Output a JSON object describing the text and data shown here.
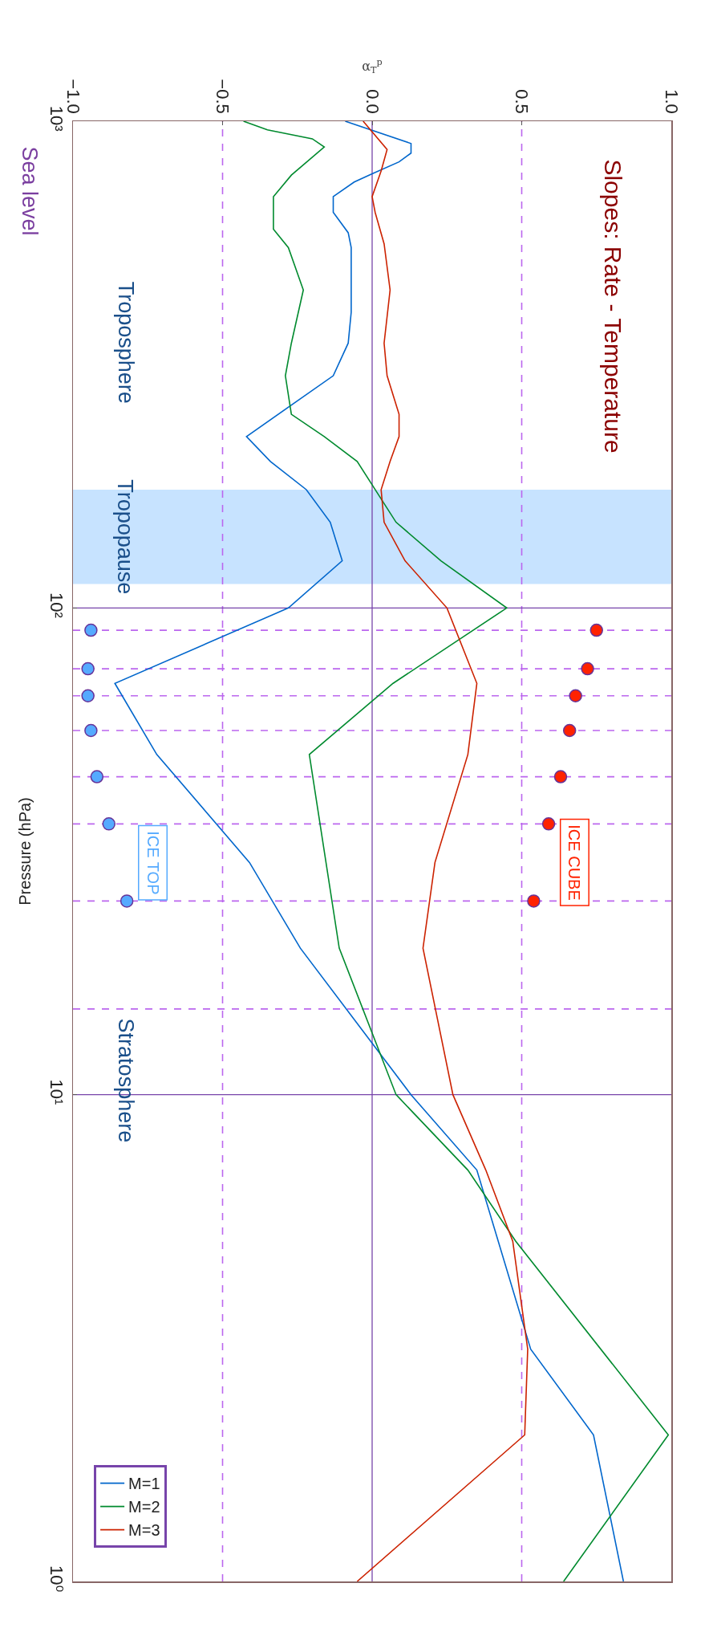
{
  "chart_data": {
    "type": "line",
    "title": "Slopes: Rate - Temperature",
    "xlabel": "α$_{T}$$^{p}$",
    "ylabel": "Pressure (hPa)",
    "log": "y",
    "grid": false,
    "legend": "bottom left",
    "ylim": [
      1,
      1000
    ],
    "yticks": [
      {
        "value": 1000,
        "label": "10³"
      },
      {
        "value": 100,
        "label": "10²"
      },
      {
        "value": 10,
        "label": "10¹"
      },
      {
        "value": 1,
        "label": "10⁰"
      }
    ],
    "xlim": [
      -1,
      1
    ],
    "xticks": [
      {
        "value": -1,
        "label": "−1.0"
      },
      {
        "value": -0.5,
        "label": "−0.5"
      },
      {
        "value": 0,
        "label": "0.0"
      },
      {
        "value": 0.5,
        "label": "0.5"
      },
      {
        "value": 1,
        "label": "1.0"
      }
    ],
    "series": [
      {
        "name": "M=1",
        "color": "#0066cc",
        "values": [
          1000,
          900,
          860,
          825,
          780,
          750,
          700,
          650,
          590,
          550,
          405,
          350,
          300,
          225,
          200,
          175,
          150,
          125,
          100,
          70,
          50,
          30,
          20,
          10,
          7,
          3,
          2,
          1
        ],
        "x": [
          -0.09,
          0.13,
          0.13,
          0.09,
          0.0,
          -0.06,
          -0.13,
          -0.13,
          -0.08,
          -0.07,
          -0.07,
          -0.08,
          -0.13,
          -0.42,
          -0.34,
          -0.22,
          -0.14,
          -0.1,
          -0.28,
          -0.86,
          -0.72,
          -0.41,
          -0.24,
          0.13,
          0.35,
          0.53,
          0.74,
          0.84
        ]
      },
      {
        "name": "M=2",
        "color": "#008a2e",
        "values": [
          1000,
          960,
          920,
          885,
          775,
          700,
          650,
          600,
          550,
          450,
          350,
          300,
          250,
          225,
          200,
          150,
          125,
          100,
          70,
          50,
          20,
          10,
          7,
          5,
          2,
          1
        ],
        "x": [
          -0.43,
          -0.35,
          -0.2,
          -0.16,
          -0.27,
          -0.33,
          -0.33,
          -0.33,
          -0.28,
          -0.23,
          -0.27,
          -0.29,
          -0.27,
          -0.16,
          -0.05,
          0.08,
          0.23,
          0.45,
          0.07,
          -0.21,
          -0.11,
          0.08,
          0.32,
          0.48,
          0.99,
          0.64
        ]
      },
      {
        "name": "M=3",
        "color": "#cc2200",
        "values": [
          1000,
          875,
          790,
          700,
          650,
          560,
          450,
          350,
          300,
          250,
          225,
          200,
          175,
          150,
          125,
          100,
          70,
          50,
          30,
          20,
          10,
          7,
          5,
          3,
          2,
          1
        ],
        "x": [
          -0.03,
          0.05,
          0.03,
          0.0,
          0.01,
          0.04,
          0.06,
          0.04,
          0.05,
          0.09,
          0.09,
          0.06,
          0.03,
          0.04,
          0.11,
          0.25,
          0.35,
          0.32,
          0.21,
          0.17,
          0.27,
          0.38,
          0.47,
          0.52,
          0.51,
          -0.05
        ]
      },
      {
        "name": "ICE CUBE",
        "type": "scatter",
        "marker": "circle",
        "color": "#ff2200",
        "values": [
          90,
          75,
          66,
          56,
          45,
          36,
          25
        ],
        "x": [
          0.75,
          0.72,
          0.68,
          0.66,
          0.63,
          0.59,
          0.54
        ]
      },
      {
        "name": "ICE TOP",
        "type": "scatter",
        "marker": "circle",
        "color": "#55aaff",
        "values": [
          90,
          75,
          66,
          56,
          45,
          36,
          25
        ],
        "x": [
          -0.94,
          -0.95,
          -0.95,
          -0.94,
          -0.92,
          -0.88,
          -0.82
        ]
      }
    ],
    "ref_lines": [
      {
        "axis": "x",
        "value": 0,
        "line_style": "solid",
        "color": "#7744aa"
      },
      {
        "axis": "x",
        "value": -0.5,
        "line_style": "dashed",
        "color": "#bb66ee"
      },
      {
        "axis": "x",
        "value": 0.5,
        "line_style": "dashed",
        "color": "#bb66ee"
      },
      {
        "axis": "y",
        "value": 100,
        "line_style": "solid",
        "color": "#7744aa"
      },
      {
        "axis": "y",
        "value": 10,
        "line_style": "solid",
        "color": "#7744aa"
      },
      {
        "axis": "y",
        "value": 90,
        "line_style": "dashed",
        "color": "#bb66ee"
      },
      {
        "axis": "y",
        "value": 75,
        "line_style": "dashed",
        "color": "#bb66ee"
      },
      {
        "axis": "y",
        "value": 66,
        "line_style": "dashed",
        "color": "#bb66ee"
      },
      {
        "axis": "y",
        "value": 56,
        "line_style": "dashed",
        "color": "#bb66ee"
      },
      {
        "axis": "y",
        "value": 45,
        "line_style": "dashed",
        "color": "#bb66ee"
      },
      {
        "axis": "y",
        "value": 36,
        "line_style": "dashed",
        "color": "#bb66ee"
      },
      {
        "axis": "y",
        "value": 25,
        "line_style": "dashed",
        "color": "#bb66ee"
      },
      {
        "axis": "y",
        "value": 15,
        "line_style": "dashed",
        "color": "#bb66ee"
      }
    ],
    "bands": [
      {
        "axis": "y",
        "from": 175,
        "to": 112,
        "label": "Tropopause",
        "color": "#99ccff"
      }
    ],
    "annotations": [
      "Troposphere",
      "Stratosphere",
      "Sea level"
    ]
  }
}
